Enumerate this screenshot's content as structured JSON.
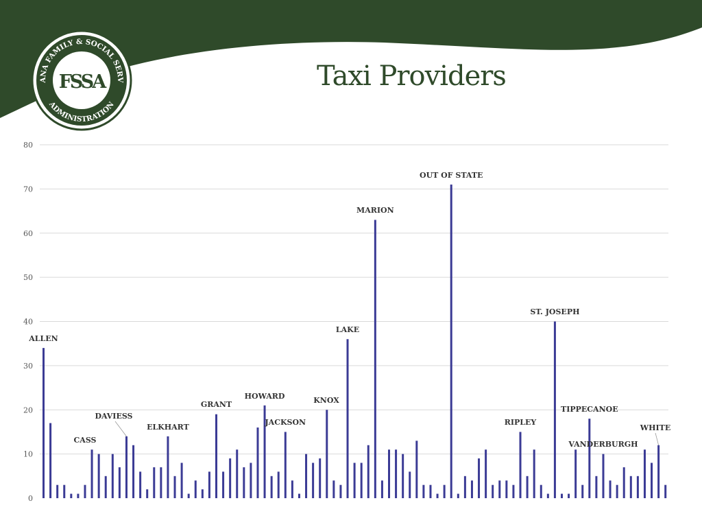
{
  "slide": {
    "title": "Taxi Providers",
    "logo": {
      "text_top": "INDIANA FAMILY & SOCIAL SERVICES",
      "text_bottom": "ADMINISTRATION",
      "monogram": "FSSA",
      "color": "#2f4a2a"
    },
    "header_color": "#2f4a2a"
  },
  "chart_data": {
    "type": "bar",
    "title": "",
    "xlabel": "",
    "ylabel": "",
    "ylim": [
      0,
      80
    ],
    "yticks": [
      0,
      10,
      20,
      30,
      40,
      50,
      60,
      70,
      80
    ],
    "grid": true,
    "bar_color": "#3b3b95",
    "values": [
      34,
      17,
      3,
      3,
      1,
      1,
      3,
      11,
      10,
      5,
      10,
      7,
      14,
      12,
      6,
      2,
      7,
      7,
      14,
      5,
      8,
      1,
      4,
      2,
      6,
      19,
      6,
      9,
      11,
      7,
      8,
      16,
      21,
      5,
      6,
      15,
      4,
      1,
      10,
      8,
      9,
      20,
      4,
      3,
      36,
      8,
      8,
      12,
      63,
      4,
      11,
      11,
      10,
      6,
      13,
      3,
      3,
      1,
      3,
      71,
      1,
      5,
      4,
      9,
      11,
      3,
      4,
      4,
      3,
      15,
      5,
      11,
      3,
      1,
      40,
      1,
      1,
      11,
      3,
      18,
      5,
      10,
      4,
      3,
      7,
      5,
      5,
      11,
      8,
      12,
      3
    ],
    "labeled_bars": [
      {
        "index": 0,
        "label": "ALLEN"
      },
      {
        "index": 7,
        "label": "CASS"
      },
      {
        "index": 12,
        "label": "DAVIESS"
      },
      {
        "index": 18,
        "label": "ELKHART"
      },
      {
        "index": 25,
        "label": "GRANT"
      },
      {
        "index": 32,
        "label": "HOWARD"
      },
      {
        "index": 35,
        "label": "JACKSON"
      },
      {
        "index": 41,
        "label": "KNOX"
      },
      {
        "index": 44,
        "label": "LAKE"
      },
      {
        "index": 48,
        "label": "MARION"
      },
      {
        "index": 59,
        "label": "OUT OF STATE"
      },
      {
        "index": 69,
        "label": "RIPLEY"
      },
      {
        "index": 74,
        "label": "ST. JOSEPH"
      },
      {
        "index": 79,
        "label": "TIPPECANOE"
      },
      {
        "index": 81,
        "label": "VANDERBURGH"
      },
      {
        "index": 89,
        "label": "WHITE"
      }
    ]
  }
}
